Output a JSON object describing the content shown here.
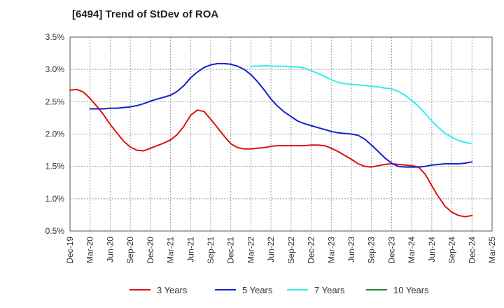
{
  "chart_data": {
    "type": "line",
    "title": "[6494]  Trend of StDev of ROA",
    "xlabel": "",
    "ylabel": "",
    "x_ticks": [
      "Dec-19",
      "Mar-20",
      "Jun-20",
      "Sep-20",
      "Dec-20",
      "Mar-21",
      "Jun-21",
      "Sep-21",
      "Dec-21",
      "Mar-22",
      "Jun-22",
      "Sep-22",
      "Dec-22",
      "Mar-23",
      "Jun-23",
      "Sep-23",
      "Dec-23",
      "Mar-24",
      "Jun-24",
      "Sep-24",
      "Dec-24",
      "Mar-25"
    ],
    "y_ticks": [
      "0.5%",
      "1.0%",
      "1.5%",
      "2.0%",
      "2.5%",
      "3.0%",
      "3.5%"
    ],
    "ylim": [
      0.5,
      3.5
    ],
    "y_unit": "%",
    "grid": true,
    "legend_position": "bottom",
    "series": [
      {
        "name": "3 Years",
        "color": "#dd1111",
        "points": [
          [
            "Dec-19",
            2.68
          ],
          [
            "Jan-20",
            2.69
          ],
          [
            "Feb-20",
            2.65
          ],
          [
            "Mar-20",
            2.55
          ],
          [
            "Apr-20",
            2.43
          ],
          [
            "May-20",
            2.3
          ],
          [
            "Jun-20",
            2.15
          ],
          [
            "Jul-20",
            2.02
          ],
          [
            "Aug-20",
            1.89
          ],
          [
            "Sep-20",
            1.8
          ],
          [
            "Oct-20",
            1.75
          ],
          [
            "Nov-20",
            1.74
          ],
          [
            "Dec-20",
            1.78
          ],
          [
            "Jan-21",
            1.82
          ],
          [
            "Feb-21",
            1.86
          ],
          [
            "Mar-21",
            1.91
          ],
          [
            "Apr-21",
            1.99
          ],
          [
            "May-21",
            2.12
          ],
          [
            "Jun-21",
            2.29
          ],
          [
            "Jul-21",
            2.37
          ],
          [
            "Aug-21",
            2.35
          ],
          [
            "Sep-21",
            2.23
          ],
          [
            "Oct-21",
            2.1
          ],
          [
            "Nov-21",
            1.97
          ],
          [
            "Dec-21",
            1.85
          ],
          [
            "Jan-22",
            1.79
          ],
          [
            "Feb-22",
            1.77
          ],
          [
            "Mar-22",
            1.77
          ],
          [
            "Apr-22",
            1.78
          ],
          [
            "May-22",
            1.79
          ],
          [
            "Jun-22",
            1.81
          ],
          [
            "Jul-22",
            1.82
          ],
          [
            "Aug-22",
            1.82
          ],
          [
            "Sep-22",
            1.82
          ],
          [
            "Oct-22",
            1.82
          ],
          [
            "Nov-22",
            1.82
          ],
          [
            "Dec-22",
            1.83
          ],
          [
            "Jan-23",
            1.83
          ],
          [
            "Feb-23",
            1.82
          ],
          [
            "Mar-23",
            1.78
          ],
          [
            "Apr-23",
            1.73
          ],
          [
            "May-23",
            1.67
          ],
          [
            "Jun-23",
            1.61
          ],
          [
            "Jul-23",
            1.54
          ],
          [
            "Aug-23",
            1.5
          ],
          [
            "Sep-23",
            1.49
          ],
          [
            "Oct-23",
            1.51
          ],
          [
            "Nov-23",
            1.53
          ],
          [
            "Dec-23",
            1.54
          ],
          [
            "Jan-24",
            1.53
          ],
          [
            "Feb-24",
            1.52
          ],
          [
            "Mar-24",
            1.51
          ],
          [
            "Apr-24",
            1.49
          ],
          [
            "May-24",
            1.38
          ],
          [
            "Jun-24",
            1.2
          ],
          [
            "Jul-24",
            1.03
          ],
          [
            "Aug-24",
            0.88
          ],
          [
            "Sep-24",
            0.79
          ],
          [
            "Oct-24",
            0.74
          ],
          [
            "Nov-24",
            0.72
          ],
          [
            "Dec-24",
            0.74
          ]
        ]
      },
      {
        "name": "5 Years",
        "color": "#1122cc",
        "points": [
          [
            "Mar-20",
            2.39
          ],
          [
            "Apr-20",
            2.39
          ],
          [
            "May-20",
            2.39
          ],
          [
            "Jun-20",
            2.4
          ],
          [
            "Jul-20",
            2.4
          ],
          [
            "Aug-20",
            2.41
          ],
          [
            "Sep-20",
            2.42
          ],
          [
            "Oct-20",
            2.44
          ],
          [
            "Nov-20",
            2.47
          ],
          [
            "Dec-20",
            2.51
          ],
          [
            "Jan-21",
            2.54
          ],
          [
            "Feb-21",
            2.57
          ],
          [
            "Mar-21",
            2.6
          ],
          [
            "Apr-21",
            2.66
          ],
          [
            "May-21",
            2.75
          ],
          [
            "Jun-21",
            2.87
          ],
          [
            "Jul-21",
            2.96
          ],
          [
            "Aug-21",
            3.03
          ],
          [
            "Sep-21",
            3.07
          ],
          [
            "Oct-21",
            3.09
          ],
          [
            "Nov-21",
            3.09
          ],
          [
            "Dec-21",
            3.08
          ],
          [
            "Jan-22",
            3.05
          ],
          [
            "Feb-22",
            3.0
          ],
          [
            "Mar-22",
            2.92
          ],
          [
            "Apr-22",
            2.81
          ],
          [
            "May-22",
            2.68
          ],
          [
            "Jun-22",
            2.54
          ],
          [
            "Jul-22",
            2.43
          ],
          [
            "Aug-22",
            2.34
          ],
          [
            "Sep-22",
            2.27
          ],
          [
            "Oct-22",
            2.2
          ],
          [
            "Nov-22",
            2.16
          ],
          [
            "Dec-22",
            2.13
          ],
          [
            "Jan-23",
            2.1
          ],
          [
            "Feb-23",
            2.07
          ],
          [
            "Mar-23",
            2.04
          ],
          [
            "Apr-23",
            2.02
          ],
          [
            "May-23",
            2.01
          ],
          [
            "Jun-23",
            2.0
          ],
          [
            "Jul-23",
            1.98
          ],
          [
            "Aug-23",
            1.92
          ],
          [
            "Sep-23",
            1.83
          ],
          [
            "Oct-23",
            1.73
          ],
          [
            "Nov-23",
            1.63
          ],
          [
            "Dec-23",
            1.55
          ],
          [
            "Jan-24",
            1.5
          ],
          [
            "Feb-24",
            1.49
          ],
          [
            "Mar-24",
            1.49
          ],
          [
            "Apr-24",
            1.49
          ],
          [
            "May-24",
            1.5
          ],
          [
            "Jun-24",
            1.52
          ],
          [
            "Jul-24",
            1.53
          ],
          [
            "Aug-24",
            1.54
          ],
          [
            "Sep-24",
            1.54
          ],
          [
            "Oct-24",
            1.54
          ],
          [
            "Nov-24",
            1.55
          ],
          [
            "Dec-24",
            1.57
          ]
        ]
      },
      {
        "name": "7 Years",
        "color": "#33eeee",
        "points": [
          [
            "Mar-22",
            3.05
          ],
          [
            "Apr-22",
            3.05
          ],
          [
            "May-22",
            3.06
          ],
          [
            "Jun-22",
            3.05
          ],
          [
            "Jul-22",
            3.05
          ],
          [
            "Aug-22",
            3.05
          ],
          [
            "Sep-22",
            3.04
          ],
          [
            "Oct-22",
            3.04
          ],
          [
            "Nov-22",
            3.02
          ],
          [
            "Dec-22",
            2.98
          ],
          [
            "Jan-23",
            2.94
          ],
          [
            "Feb-23",
            2.89
          ],
          [
            "Mar-23",
            2.84
          ],
          [
            "Apr-23",
            2.8
          ],
          [
            "May-23",
            2.78
          ],
          [
            "Jun-23",
            2.77
          ],
          [
            "Jul-23",
            2.76
          ],
          [
            "Aug-23",
            2.75
          ],
          [
            "Sep-23",
            2.74
          ],
          [
            "Oct-23",
            2.73
          ],
          [
            "Nov-23",
            2.71
          ],
          [
            "Dec-23",
            2.7
          ],
          [
            "Jan-24",
            2.66
          ],
          [
            "Feb-24",
            2.6
          ],
          [
            "Mar-24",
            2.52
          ],
          [
            "Apr-24",
            2.43
          ],
          [
            "May-24",
            2.32
          ],
          [
            "Jun-24",
            2.2
          ],
          [
            "Jul-24",
            2.1
          ],
          [
            "Aug-24",
            2.01
          ],
          [
            "Sep-24",
            1.95
          ],
          [
            "Oct-24",
            1.9
          ],
          [
            "Nov-24",
            1.87
          ],
          [
            "Dec-24",
            1.85
          ]
        ]
      },
      {
        "name": "10 Years",
        "color": "#228822",
        "points": []
      }
    ]
  }
}
